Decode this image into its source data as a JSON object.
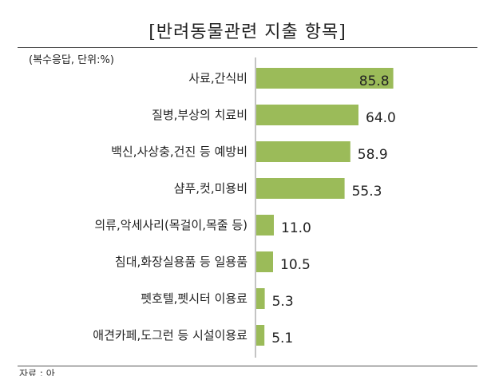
{
  "chart_data": {
    "type": "bar",
    "orientation": "horizontal",
    "title": "[반려동물관련 지출 항목]",
    "unit_note": "(복수응답, 단위:%)",
    "categories": [
      "사료,간식비",
      "질병,부상의 치료비",
      "백신,사상충,건진 등 예방비",
      "샴푸,컷,미용비",
      "의류,악세사리(목걸이,목줄 등)",
      "침대,화장실용품 등 일용품",
      "펫호텔,펫시터 이용료",
      "애견카페,도그런 등 시설이용료"
    ],
    "values": [
      85.8,
      64.0,
      58.9,
      55.3,
      11.0,
      10.5,
      5.3,
      5.1
    ],
    "value_labels": [
      "85.8",
      "64.0",
      "58.9",
      "55.3",
      "11.0",
      "10.5",
      "5.3",
      "5.1"
    ],
    "xlim": [
      0,
      100
    ],
    "bar_color": "#9bbb59",
    "grid": false,
    "legend": "none"
  },
  "footnote": "자료 : 아"
}
